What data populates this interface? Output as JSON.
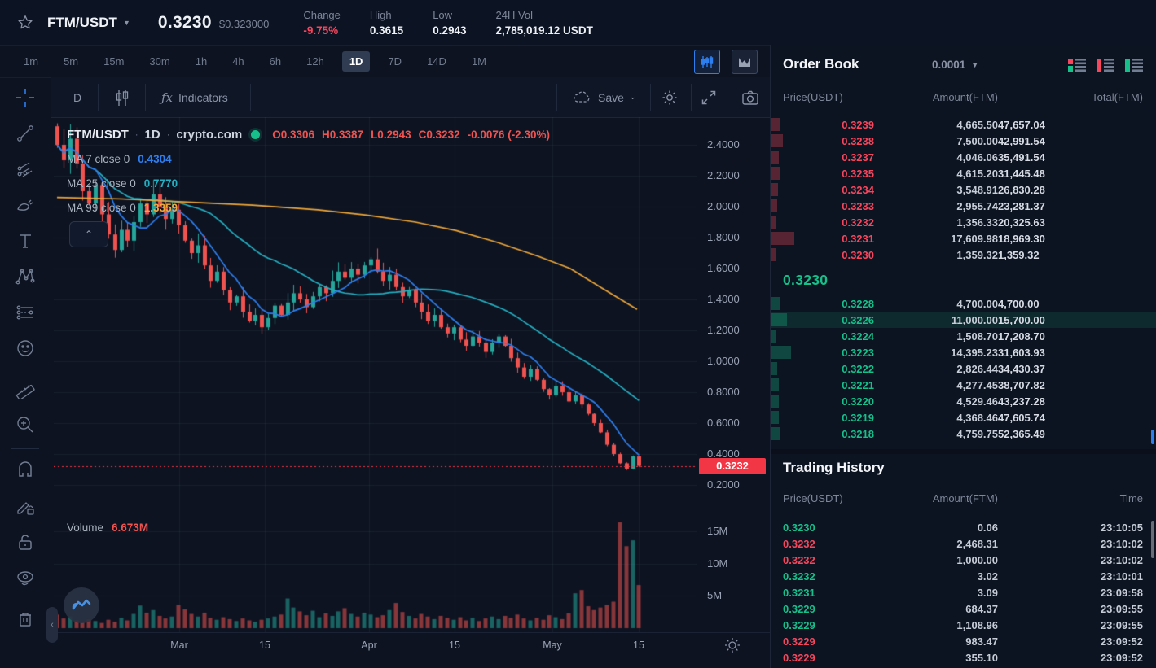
{
  "topbar": {
    "pair": "FTM/USDT",
    "price": "0.3230",
    "price_fiat": "$0.323000",
    "stats": [
      {
        "label": "Change",
        "value": "-9.75%",
        "color": "#f6465d"
      },
      {
        "label": "High",
        "value": "0.3615",
        "color": "#eef1f5"
      },
      {
        "label": "Low",
        "value": "0.2943",
        "color": "#eef1f5"
      },
      {
        "label": "24H Vol",
        "value": "2,785,019.12 USDT",
        "color": "#eef1f5"
      }
    ]
  },
  "timeframes": {
    "items": [
      "1m",
      "5m",
      "15m",
      "30m",
      "1h",
      "4h",
      "6h",
      "12h",
      "1D",
      "7D",
      "14D",
      "1M"
    ],
    "active": "1D"
  },
  "chart_toolbar": {
    "interval_label": "D",
    "fx": "ƒx",
    "indicators_label": "Indicators",
    "save_label": "Save"
  },
  "legend": {
    "symbol": "FTM/USDT",
    "sep": "·",
    "interval": "1D",
    "source": "crypto.com",
    "ohlc": {
      "o": "O0.3306",
      "h": "H0.3387",
      "l": "L0.2943",
      "c": "C0.3232",
      "change": "-0.0076 (-2.30%)"
    }
  },
  "ma_rows": [
    {
      "label": "MA 7 close 0",
      "value": "0.4304",
      "color": "#2d7ff0"
    },
    {
      "label": "MA 25 close 0",
      "value": "0.7770",
      "color": "#23b0c2"
    },
    {
      "label": "MA 99 close 0",
      "value": "1.3359",
      "color": "#efa839"
    }
  ],
  "price_axis": {
    "ticks": [
      "2.4000",
      "2.2000",
      "2.0000",
      "1.8000",
      "1.6000",
      "1.4000",
      "1.2000",
      "1.0000",
      "0.8000",
      "0.6000",
      "0.4000",
      "0.2000"
    ],
    "last_price_tag": "0.3232"
  },
  "time_axis": {
    "labels": [
      "Mar",
      "15",
      "Apr",
      "15",
      "May",
      "15"
    ]
  },
  "volume_pane": {
    "label": "Volume",
    "value": "6.673M",
    "ticks": [
      "15M",
      "10M",
      "5M"
    ]
  },
  "chart_data": {
    "type": "candlestick",
    "symbol": "FTM/USDT",
    "interval": "1D",
    "price_range_visible": [
      0.13,
      2.52
    ],
    "price_ticks": [
      2.4,
      2.2,
      2.0,
      1.8,
      1.6,
      1.4,
      1.2,
      1.0,
      0.8,
      0.6,
      0.4,
      0.2
    ],
    "current_price": 0.3232,
    "first_open": 2.52,
    "closes": [
      2.4,
      2.3,
      2.44,
      2.28,
      2.1,
      2.02,
      2.14,
      1.95,
      1.82,
      1.72,
      1.85,
      1.78,
      1.9,
      2.02,
      1.95,
      2.08,
      2.0,
      1.92,
      1.98,
      1.88,
      1.78,
      1.7,
      1.75,
      1.62,
      1.52,
      1.58,
      1.46,
      1.38,
      1.42,
      1.32,
      1.26,
      1.3,
      1.22,
      1.28,
      1.36,
      1.3,
      1.38,
      1.44,
      1.4,
      1.35,
      1.42,
      1.48,
      1.44,
      1.52,
      1.58,
      1.54,
      1.6,
      1.56,
      1.62,
      1.66,
      1.58,
      1.52,
      1.56,
      1.48,
      1.42,
      1.46,
      1.38,
      1.32,
      1.26,
      1.3,
      1.22,
      1.18,
      1.22,
      1.14,
      1.1,
      1.16,
      1.12,
      1.06,
      1.12,
      1.16,
      1.1,
      1.02,
      0.96,
      0.9,
      0.95,
      0.88,
      0.82,
      0.78,
      0.84,
      0.8,
      0.74,
      0.78,
      0.72,
      0.66,
      0.6,
      0.54,
      0.46,
      0.4,
      0.34,
      0.305,
      0.385,
      0.3232
    ],
    "volumes_m": [
      2.1,
      1.5,
      1.8,
      1.2,
      0.9,
      1.4,
      1.1,
      0.8,
      1.3,
      1.0,
      1.6,
      1.2,
      2.2,
      3.5,
      2.4,
      2.8,
      1.9,
      1.5,
      1.8,
      3.6,
      2.9,
      2.2,
      1.8,
      2.4,
      1.6,
      1.3,
      1.7,
      1.4,
      1.1,
      1.5,
      1.2,
      1.0,
      1.3,
      1.5,
      1.8,
      2.1,
      4.6,
      3.2,
      2.6,
      2.0,
      2.7,
      1.7,
      2.3,
      1.9,
      2.6,
      3.1,
      2.2,
      1.8,
      2.4,
      2.1,
      1.7,
      2.0,
      2.8,
      3.9,
      2.5,
      1.9,
      1.5,
      2.2,
      1.8,
      1.4,
      1.9,
      1.6,
      1.3,
      1.7,
      1.2,
      1.6,
      1.1,
      1.5,
      1.8,
      1.4,
      1.9,
      1.6,
      2.1,
      1.5,
      1.2,
      1.6,
      1.3,
      2.0,
      1.7,
      1.4,
      2.3,
      5.4,
      5.9,
      3.4,
      2.8,
      3.2,
      3.6,
      4.1,
      16.4,
      12.7,
      13.6,
      6.673
    ],
    "volume_ticks_m": [
      15,
      10,
      5
    ],
    "ma99_points": [
      [
        70,
        2.06
      ],
      [
        150,
        2.05
      ],
      [
        230,
        2.03
      ],
      [
        310,
        2.01
      ],
      [
        390,
        1.98
      ],
      [
        450,
        1.945
      ],
      [
        510,
        1.9
      ],
      [
        560,
        1.845
      ],
      [
        610,
        1.77
      ],
      [
        660,
        1.68
      ],
      [
        700,
        1.6
      ],
      [
        740,
        1.47
      ],
      [
        782,
        1.336
      ]
    ],
    "time_grid_labels": [
      "Mar",
      "15",
      "Apr",
      "15",
      "May",
      "15"
    ]
  },
  "order_book": {
    "title": "Order Book",
    "precision": "0.0001",
    "headers": [
      "Price(USDT)",
      "Amount(FTM)",
      "Total(FTM)"
    ],
    "asks": [
      {
        "price": "0.3239",
        "amount": "4,665.50",
        "total": "47,657.04"
      },
      {
        "price": "0.3238",
        "amount": "7,500.00",
        "total": "42,991.54"
      },
      {
        "price": "0.3237",
        "amount": "4,046.06",
        "total": "35,491.54"
      },
      {
        "price": "0.3235",
        "amount": "4,615.20",
        "total": "31,445.48"
      },
      {
        "price": "0.3234",
        "amount": "3,548.91",
        "total": "26,830.28"
      },
      {
        "price": "0.3233",
        "amount": "2,955.74",
        "total": "23,281.37"
      },
      {
        "price": "0.3232",
        "amount": "1,356.33",
        "total": "20,325.63"
      },
      {
        "price": "0.3231",
        "amount": "17,609.98",
        "total": "18,969.30"
      },
      {
        "price": "0.3230",
        "amount": "1,359.32",
        "total": "1,359.32"
      }
    ],
    "last_price": "0.3230",
    "bids": [
      {
        "price": "0.3228",
        "amount": "4,700.00",
        "total": "4,700.00"
      },
      {
        "price": "0.3226",
        "amount": "11,000.00",
        "total": "15,700.00",
        "highlighted": true
      },
      {
        "price": "0.3224",
        "amount": "1,508.70",
        "total": "17,208.70"
      },
      {
        "price": "0.3223",
        "amount": "14,395.23",
        "total": "31,603.93"
      },
      {
        "price": "0.3222",
        "amount": "2,826.44",
        "total": "34,430.37"
      },
      {
        "price": "0.3221",
        "amount": "4,277.45",
        "total": "38,707.82"
      },
      {
        "price": "0.3220",
        "amount": "4,529.46",
        "total": "43,237.28"
      },
      {
        "price": "0.3219",
        "amount": "4,368.46",
        "total": "47,605.74"
      },
      {
        "price": "0.3218",
        "amount": "4,759.75",
        "total": "52,365.49"
      }
    ]
  },
  "trading_history": {
    "title": "Trading History",
    "headers": [
      "Price(USDT)",
      "Amount(FTM)",
      "Time"
    ],
    "rows": [
      {
        "price": "0.3230",
        "amount": "0.06",
        "time": "23:10:05",
        "side": "buy"
      },
      {
        "price": "0.3232",
        "amount": "2,468.31",
        "time": "23:10:02",
        "side": "sell"
      },
      {
        "price": "0.3232",
        "amount": "1,000.00",
        "time": "23:10:02",
        "side": "sell"
      },
      {
        "price": "0.3232",
        "amount": "3.02",
        "time": "23:10:01",
        "side": "buy"
      },
      {
        "price": "0.3231",
        "amount": "3.09",
        "time": "23:09:58",
        "side": "buy"
      },
      {
        "price": "0.3229",
        "amount": "684.37",
        "time": "23:09:55",
        "side": "buy"
      },
      {
        "price": "0.3229",
        "amount": "1,108.96",
        "time": "23:09:55",
        "side": "buy"
      },
      {
        "price": "0.3229",
        "amount": "983.47",
        "time": "23:09:52",
        "side": "sell"
      },
      {
        "price": "0.3229",
        "amount": "355.10",
        "time": "23:09:52",
        "side": "sell"
      }
    ]
  },
  "colors": {
    "up": "#26a69a",
    "down": "#ef5350",
    "bid": "#17c08b",
    "ask": "#f6465d",
    "tag_red": "#f23645",
    "accent_blue": "#2d7ff0",
    "ma7": "#2d7ff0",
    "ma25": "#23b0c2",
    "ma99": "#efa839"
  },
  "left_toolbar_tools": [
    "crosshair",
    "trend-line",
    "pitchfork",
    "brush",
    "text",
    "xabcd-pattern",
    "forecast",
    "emoji",
    "ruler",
    "zoom-in",
    "magnet",
    "drawing-lock",
    "lock",
    "hide-drawings",
    "remove"
  ]
}
